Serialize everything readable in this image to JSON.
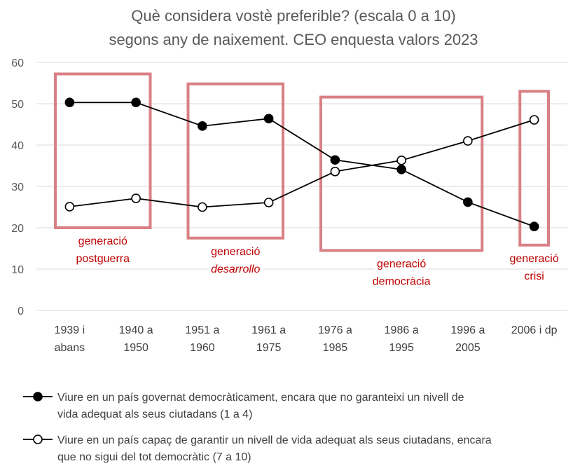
{
  "chart_data": {
    "type": "line",
    "title": [
      "Què considera vostè preferible? (escala 0 a 10)",
      "segons any de naixement. CEO enquesta valors 2023"
    ],
    "ylim": [
      0,
      60
    ],
    "yticks": [
      "0",
      "10",
      "20",
      "30",
      "40",
      "50",
      "60"
    ],
    "categories": [
      [
        "1939 i",
        "abans"
      ],
      [
        "1940 a",
        "1950"
      ],
      [
        "1951 a",
        "1960"
      ],
      [
        "1961 a",
        "1975"
      ],
      [
        "1976 a",
        "1985"
      ],
      [
        "1986 a",
        "1995"
      ],
      [
        "1996 a",
        "2005"
      ],
      [
        "2006 i dp"
      ]
    ],
    "series": [
      {
        "name": [
          "Viure en un país governat democràticament, encara que no garanteixi un nivell de",
          "vida adequat als seus ciutadans (1 a 4)"
        ],
        "marker": "filled",
        "color": "#000000",
        "values": [
          50.3,
          50.3,
          44.6,
          46.4,
          36.4,
          34.1,
          26.2,
          20.3
        ]
      },
      {
        "name": [
          "Viure en un país capaç de garantir un nivell de vida adequat als seus ciutadans, encara",
          "que no sigui del tot democràtic (7 a 10)"
        ],
        "marker": "hollow",
        "color": "#000000",
        "values": [
          25.1,
          27.1,
          25.0,
          26.1,
          33.6,
          36.3,
          41.0,
          46.1
        ]
      }
    ],
    "annotations": [
      {
        "lines": [
          "generació",
          "postguerra"
        ],
        "from": 0,
        "to": 1,
        "y_top": 57.2,
        "y_bottom": 20.0,
        "italic_line": -1
      },
      {
        "lines": [
          "generació",
          "desarrollo"
        ],
        "from": 2,
        "to": 3,
        "y_top": 54.8,
        "y_bottom": 17.5,
        "italic_line": 1
      },
      {
        "lines": [
          "generació",
          "democràcia"
        ],
        "from": 4,
        "to": 6,
        "y_top": 51.6,
        "y_bottom": 14.5,
        "italic_line": -1
      },
      {
        "lines": [
          "generació",
          "crisi"
        ],
        "from": 7,
        "to": 7,
        "y_top": 53.0,
        "y_bottom": 15.8,
        "italic_line": -1
      }
    ],
    "annotation_color": "#d98085",
    "grid": true,
    "legend_position": "bottom"
  }
}
